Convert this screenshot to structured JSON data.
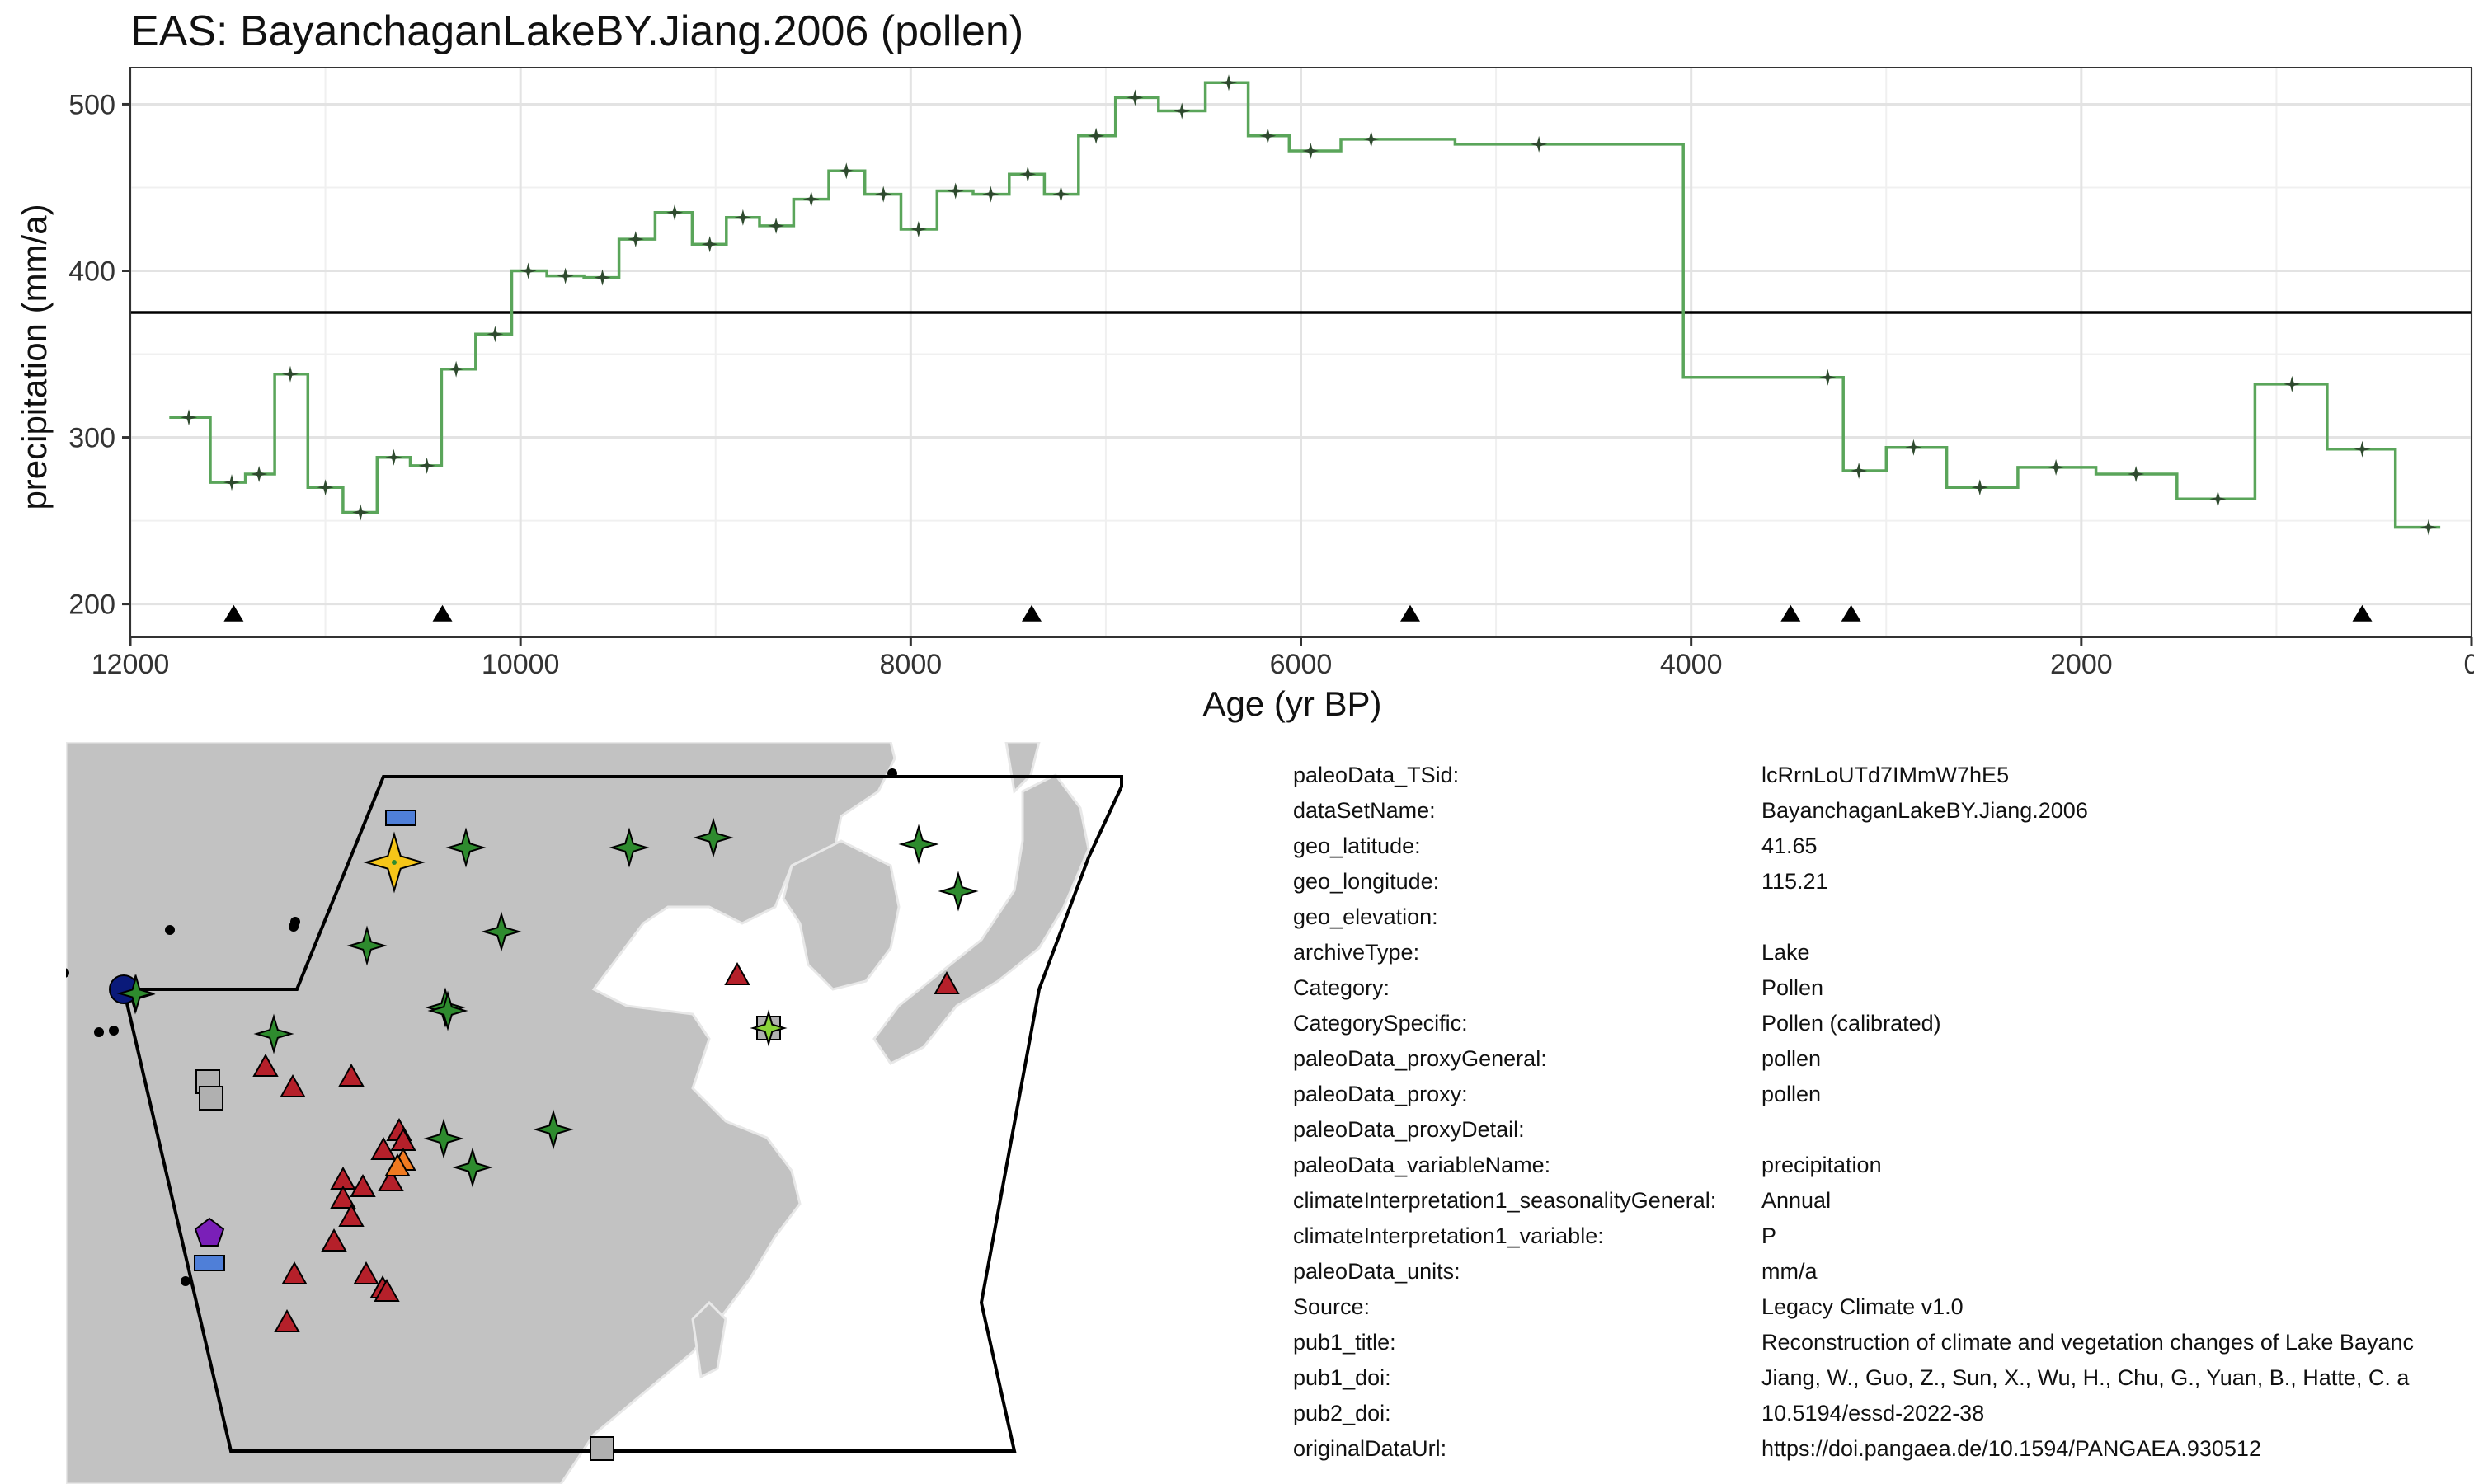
{
  "title": "EAS: BayanchaganLakeBY.Jiang.2006 (pollen)",
  "chart_data": {
    "type": "line",
    "step": true,
    "xlabel": "Age (yr BP)",
    "ylabel": "precipitation (mm/a)",
    "xlim": [
      12000,
      0
    ],
    "ylim": [
      180,
      522
    ],
    "x_reversed": true,
    "grid": true,
    "x_ticks": [
      12000,
      10000,
      8000,
      6000,
      4000,
      2000,
      0
    ],
    "y_ticks": [
      200,
      300,
      400,
      500
    ],
    "x_tick_labels": [
      "12000",
      "10000",
      "8000",
      "6000",
      "4000",
      "2000",
      "0"
    ],
    "y_tick_labels": [
      "200",
      "300",
      "400",
      "500"
    ],
    "reference_line": 375,
    "line_color": "#5aa55a",
    "marker_color": "#2e4a2e",
    "series": [
      {
        "x": [
          11700,
          11480,
          11340,
          11180,
          11000,
          10820,
          10650,
          10480,
          10330,
          10130,
          9960,
          9770,
          9580,
          9410,
          9210,
          9030,
          8860,
          8690,
          8510,
          8330,
          8140,
          7960,
          7770,
          7590,
          7400,
          7230,
          7050,
          6850,
          6610,
          6370,
          6170,
          5950,
          5640,
          4780,
          3300,
          3140,
          2860,
          2520,
          2130,
          1720,
          1300,
          920,
          560,
          220
        ],
        "y": [
          312,
          273,
          278,
          338,
          270,
          255,
          288,
          283,
          341,
          362,
          400,
          397,
          396,
          419,
          435,
          416,
          432,
          427,
          443,
          460,
          446,
          425,
          448,
          446,
          458,
          446,
          481,
          504,
          496,
          513,
          481,
          472,
          479,
          476,
          336,
          280,
          294,
          270,
          282,
          278,
          263,
          332,
          293,
          246
        ]
      }
    ],
    "event_markers_x": [
      11470,
      10400,
      7380,
      5440,
      3490,
      3180,
      560
    ]
  },
  "map": {
    "marker_colors": {
      "selected": "#f5c518",
      "green_star": "#2e8b2e",
      "red_triangle": "#b5202a",
      "grey_square": "#b0b0b0",
      "blue_rect": "#4f7fd8",
      "purple_pentagon": "#7a1fb8",
      "navy_circle": "#0a1a7a",
      "orange_triangle": "#f07a20",
      "lime_star": "#8ad43a"
    }
  },
  "meta": [
    {
      "key": "paleoData_TSid:",
      "value": "lcRrnLoUTd7IMmW7hE5"
    },
    {
      "key": "dataSetName:",
      "value": "BayanchaganLakeBY.Jiang.2006"
    },
    {
      "key": "geo_latitude:",
      "value": "41.65"
    },
    {
      "key": "geo_longitude:",
      "value": "115.21"
    },
    {
      "key": "geo_elevation:",
      "value": ""
    },
    {
      "key": "archiveType:",
      "value": "Lake"
    },
    {
      "key": "Category:",
      "value": "Pollen"
    },
    {
      "key": "CategorySpecific:",
      "value": "Pollen (calibrated)"
    },
    {
      "key": "paleoData_proxyGeneral:",
      "value": "pollen"
    },
    {
      "key": "paleoData_proxy:",
      "value": "pollen"
    },
    {
      "key": "paleoData_proxyDetail:",
      "value": ""
    },
    {
      "key": "paleoData_variableName:",
      "value": "precipitation"
    },
    {
      "key": "climateInterpretation1_seasonalityGeneral:",
      "value": "Annual"
    },
    {
      "key": "climateInterpretation1_variable:",
      "value": "P"
    },
    {
      "key": "paleoData_units:",
      "value": "mm/a"
    },
    {
      "key": "Source:",
      "value": "Legacy Climate v1.0"
    },
    {
      "key": "pub1_title:",
      "value": "Reconstruction of climate and vegetation changes of Lake Bayanc"
    },
    {
      "key": "pub1_doi:",
      "value": "Jiang, W., Guo, Z., Sun, X., Wu, H., Chu, G., Yuan, B., Hatte, C. a"
    },
    {
      "key": "pub2_doi:",
      "value": "10.5194/essd-2022-38"
    },
    {
      "key": "originalDataUrl:",
      "value": "https://doi.pangaea.de/10.1594/PANGAEA.930512"
    }
  ]
}
